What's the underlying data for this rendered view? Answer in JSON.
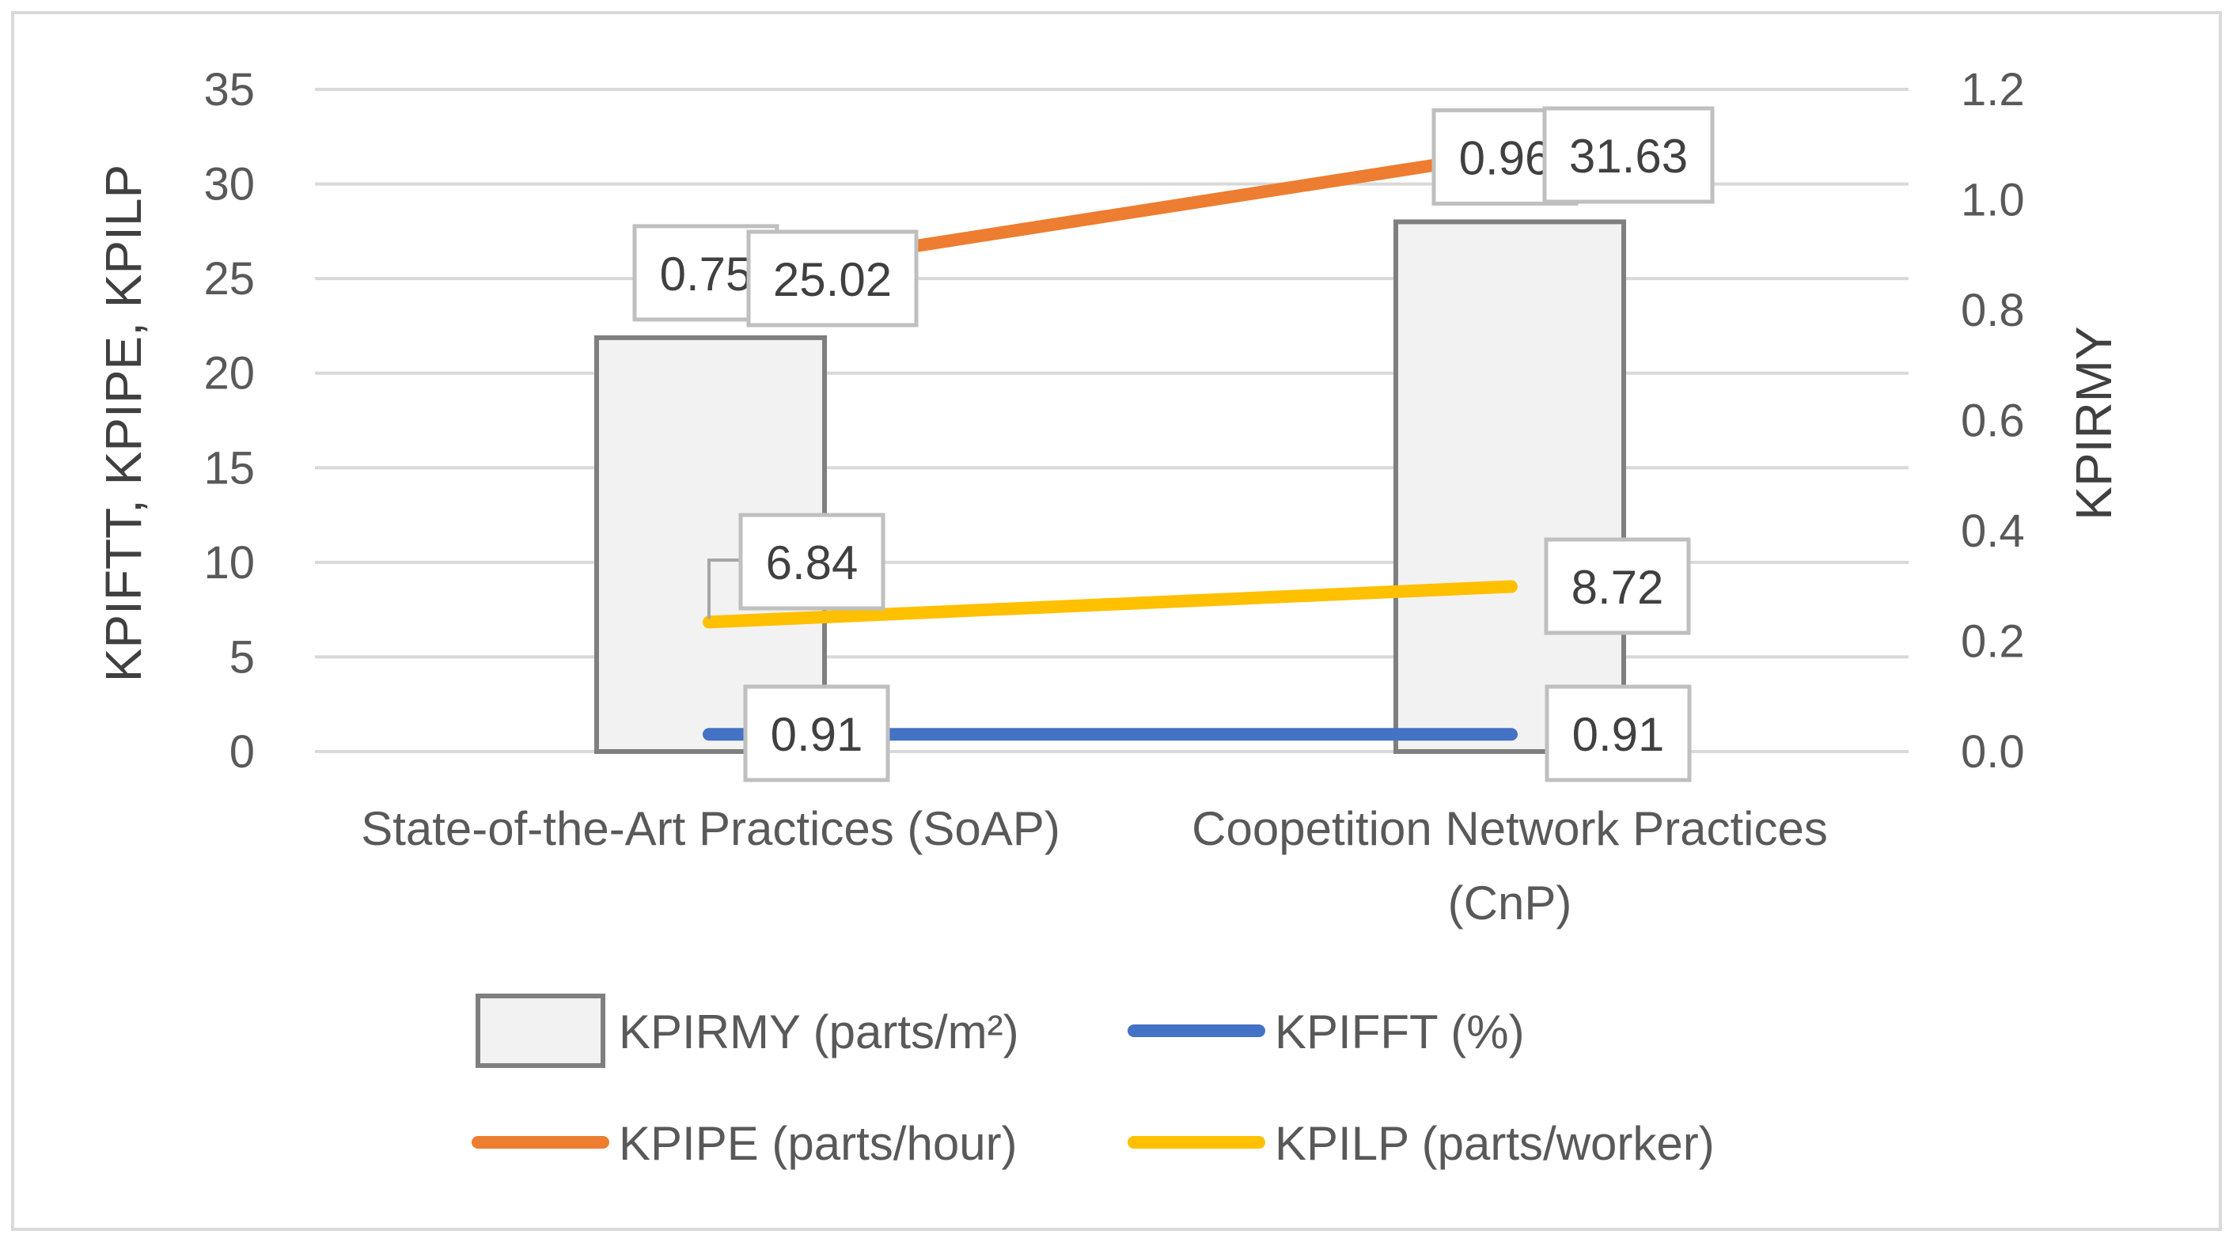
{
  "chart_data": {
    "type": "bar",
    "categories": [
      [
        "State-of-the-Art Practices (SoAP)"
      ],
      [
        "Coopetition Network Practices",
        "(CnP)"
      ]
    ],
    "left_axis": {
      "label": "KPIFTT, KPIPE, KPILP",
      "ylim": [
        0,
        35
      ],
      "ticks": [
        "0",
        "5",
        "10",
        "15",
        "20",
        "25",
        "30",
        "35"
      ]
    },
    "right_axis": {
      "label": "KPIRMY",
      "ylim": [
        0,
        1.2
      ],
      "ticks": [
        "0.0",
        "0.2",
        "0.4",
        "0.6",
        "0.8",
        "1.0",
        "1.2"
      ]
    },
    "grid": true,
    "legend_position": "bottom",
    "series": [
      {
        "name": "KPIRMY (parts/m²)",
        "type": "bar",
        "axis": "right",
        "values": [
          0.75,
          0.96
        ],
        "labels": [
          "0.75",
          "0.96"
        ],
        "color": "#f2f2f2",
        "stroke": "#7f7f7f"
      },
      {
        "name": "KPIFFT (%)",
        "type": "line",
        "axis": "left",
        "values": [
          0.91,
          0.91
        ],
        "labels": [
          "0.91",
          "0.91"
        ],
        "color": "#4472c4"
      },
      {
        "name": "KPIPE (parts/hour)",
        "type": "line",
        "axis": "left",
        "values": [
          25.02,
          31.63
        ],
        "labels": [
          "25.02",
          "31.63"
        ],
        "color": "#ed7d31"
      },
      {
        "name": "KPILP (parts/worker)",
        "type": "line",
        "axis": "left",
        "values": [
          6.84,
          8.72
        ],
        "labels": [
          "6.84",
          "8.72"
        ],
        "color": "#ffc000"
      }
    ]
  }
}
